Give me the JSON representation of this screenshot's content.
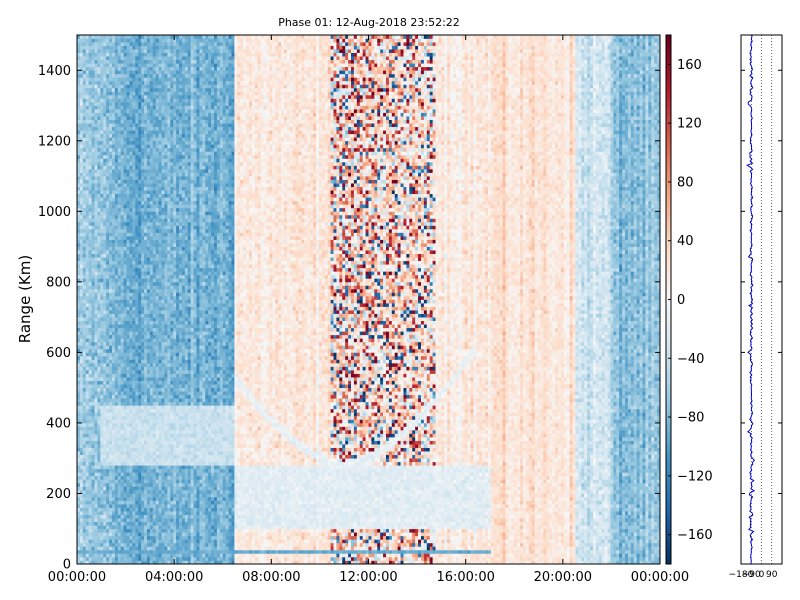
{
  "chart_data": [
    {
      "type": "heatmap",
      "title": "Phase 01: 12-Aug-2018 23:52:22",
      "xlabel": "",
      "ylabel": "Range (Km)",
      "x_ticks": [
        "00:00:00",
        "04:00:00",
        "08:00:00",
        "12:00:00",
        "16:00:00",
        "20:00:00",
        "00:00:00"
      ],
      "x_range_hours": [
        0,
        24
      ],
      "ylim": [
        0,
        1500
      ],
      "y_ticks": [
        0,
        200,
        400,
        600,
        800,
        1000,
        1200,
        1400
      ],
      "colorbar": {
        "range": [
          -180,
          180
        ],
        "ticks": [
          -160,
          -120,
          -80,
          -40,
          0,
          40,
          80,
          120,
          160
        ],
        "tick_labels": [
          "−160",
          "−120",
          "−80",
          "−40",
          "0",
          "40",
          "80",
          "120",
          "160"
        ],
        "colormap": "RdBu_r"
      },
      "value_bands": [
        {
          "start_hour": 0.0,
          "end_hour": 1.5,
          "mean": -70,
          "spread": 35
        },
        {
          "start_hour": 1.5,
          "end_hour": 6.5,
          "mean": -85,
          "spread": 30
        },
        {
          "start_hour": 6.5,
          "end_hour": 10.5,
          "mean": 18,
          "spread": 30
        },
        {
          "start_hour": 10.5,
          "end_hour": 11.7,
          "mean": 30,
          "spread": 150
        },
        {
          "start_hour": 11.7,
          "end_hour": 14.8,
          "mean": 25,
          "spread": 110
        },
        {
          "start_hour": 14.8,
          "end_hour": 17.0,
          "mean": 20,
          "spread": 30
        },
        {
          "start_hour": 17.0,
          "end_hour": 20.5,
          "mean": 25,
          "spread": 25
        },
        {
          "start_hour": 20.5,
          "end_hour": 22.0,
          "mean": -35,
          "spread": 30
        },
        {
          "start_hour": 22.0,
          "end_hour": 24.0,
          "mean": -75,
          "spread": 30
        }
      ],
      "features": [
        {
          "kind": "low-range-band",
          "start_hour": 6.5,
          "end_hour": 17.0,
          "range_km": [
            100,
            280
          ],
          "value": -20
        },
        {
          "kind": "low-range-band",
          "start_hour": 1.0,
          "end_hour": 6.5,
          "range_km": [
            280,
            450
          ],
          "value": -40
        },
        {
          "kind": "rising-arc",
          "start_hour": 6.5,
          "end_hour": 16.5,
          "range_km": [
            280,
            620
          ],
          "value": -15
        },
        {
          "kind": "line",
          "start_hour": 0.0,
          "end_hour": 17.0,
          "range_km": [
            30,
            40
          ],
          "value": -90
        }
      ]
    },
    {
      "type": "line",
      "title": "",
      "x_ticks": [
        -180,
        -90,
        0,
        90
      ],
      "x_tick_labels": [
        "−180",
        "−90",
        "0",
        "90"
      ],
      "xlim": [
        -180,
        180
      ],
      "ylim": [
        0,
        1500
      ],
      "series": [
        {
          "values_approx_mean": -90,
          "spread": 18,
          "color": "#0000cc"
        }
      ]
    }
  ]
}
